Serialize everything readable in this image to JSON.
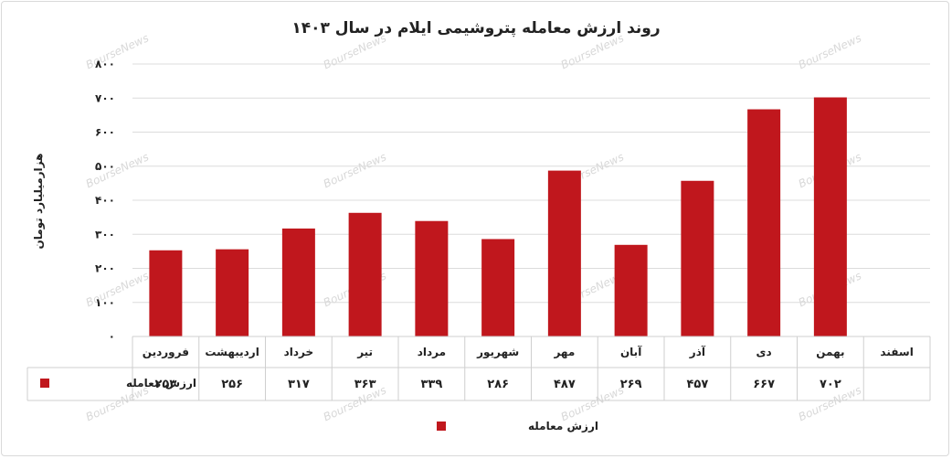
{
  "chart_data": {
    "type": "bar",
    "title": "روند ارزش معامله پتروشیمی ایلام در سال ۱۴۰۳",
    "ylabel": "هزارمیلیارد تومان",
    "xlabel": "",
    "ylim": [
      0,
      800
    ],
    "yticks": [
      0,
      100,
      200,
      300,
      400,
      500,
      600,
      700,
      800
    ],
    "ytick_labels": [
      "۰",
      "۱۰۰",
      "۲۰۰",
      "۳۰۰",
      "۴۰۰",
      "۵۰۰",
      "۶۰۰",
      "۷۰۰",
      "۸۰۰"
    ],
    "categories": [
      "فروردین",
      "اردیبهشت",
      "خرداد",
      "تیر",
      "مرداد",
      "شهریور",
      "مهر",
      "آبان",
      "آذر",
      "دی",
      "بهمن",
      "اسفند"
    ],
    "series": [
      {
        "name": "ارزش معامله",
        "color": "#c0171d",
        "values": [
          253,
          256,
          317,
          363,
          339,
          286,
          487,
          269,
          457,
          667,
          702,
          null
        ],
        "value_labels": [
          "۲۵۳",
          "۲۵۶",
          "۳۱۷",
          "۳۶۳",
          "۳۳۹",
          "۲۸۶",
          "۴۸۷",
          "۲۶۹",
          "۴۵۷",
          "۶۶۷",
          "۷۰۲",
          ""
        ]
      }
    ],
    "grid": true,
    "legend": "bottom-center",
    "data_table": true
  },
  "watermark": "BourseNews"
}
